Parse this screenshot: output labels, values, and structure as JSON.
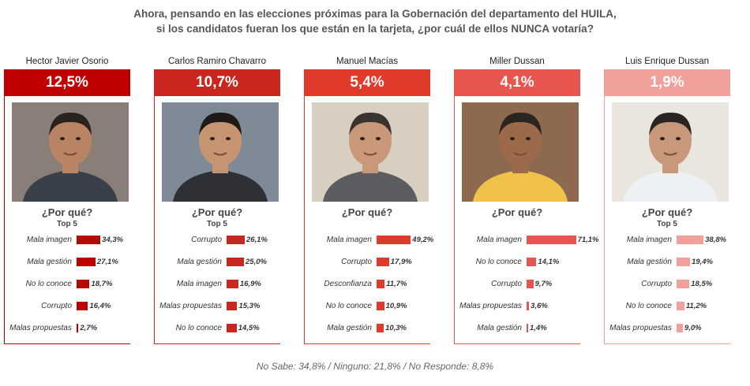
{
  "title_line1": "Ahora, pensando en las elecciones próximas para la Gobernación del departamento del HUILA,",
  "title_line2": "si los candidatos fueran los que están en la tarjeta, ¿por cuál de ellos NUNCA votaría?",
  "footer": "No Sabe: 34,8% / Ninguno: 21,8% / No Responde: 8,8%",
  "porque_label": "¿Por qué?",
  "top5_label": "Top 5",
  "chart_data": {
    "type": "bar",
    "title": "Ahora, pensando en las elecciones próximas para la Gobernación del departamento del HUILA, si los candidatos fueran los que están en la tarjeta, ¿por cuál de ellos NUNCA votaría?",
    "unit": "%",
    "candidates": [
      {
        "name": "Hector Javier Osorio",
        "total": "12,5%",
        "total_value": 12.5,
        "color": "#c00000",
        "show_top5": true,
        "reasons": [
          {
            "label": "Mala imagen",
            "value": 34.3,
            "text": "34,3%"
          },
          {
            "label": "Mala gestión",
            "value": 27.1,
            "text": "27,1%"
          },
          {
            "label": "No lo conoce",
            "value": 18.7,
            "text": "18,7%"
          },
          {
            "label": "Corrupto",
            "value": 16.4,
            "text": "16,4%"
          },
          {
            "label": "Malas propuestas",
            "value": 2.7,
            "text": "2,7%"
          }
        ]
      },
      {
        "name": "Carlos Ramiro Chavarro",
        "total": "10,7%",
        "total_value": 10.7,
        "color": "#c8261f",
        "show_top5": true,
        "reasons": [
          {
            "label": "Corrupto",
            "value": 26.1,
            "text": "26,1%"
          },
          {
            "label": "Mala gestión",
            "value": 25.0,
            "text": "25,0%"
          },
          {
            "label": "Mala imagen",
            "value": 16.9,
            "text": "16,9%"
          },
          {
            "label": "Malas propuestas",
            "value": 15.3,
            "text": "15,3%"
          },
          {
            "label": "No lo conoce",
            "value": 14.5,
            "text": "14,5%"
          }
        ]
      },
      {
        "name": "Manuel Macías",
        "total": "5,4%",
        "total_value": 5.4,
        "color": "#e03a2a",
        "show_top5": false,
        "reasons": [
          {
            "label": "Mala imagen",
            "value": 49.2,
            "text": "49,2%"
          },
          {
            "label": "Corrupto",
            "value": 17.9,
            "text": "17,9%"
          },
          {
            "label": "Desconfianza",
            "value": 11.7,
            "text": "11,7%"
          },
          {
            "label": "No lo conoce",
            "value": 10.9,
            "text": "10,9%"
          },
          {
            "label": "Mala gestión",
            "value": 10.3,
            "text": "10,3%"
          }
        ]
      },
      {
        "name": "Miller Dussan",
        "total": "4,1%",
        "total_value": 4.1,
        "color": "#e85550",
        "show_top5": false,
        "reasons": [
          {
            "label": "Mala imagen",
            "value": 71.1,
            "text": "71,1%"
          },
          {
            "label": "No lo conoce",
            "value": 14.1,
            "text": "14,1%"
          },
          {
            "label": "Corrupto",
            "value": 9.7,
            "text": "9,7%"
          },
          {
            "label": "Malas propuestas",
            "value": 3.6,
            "text": "3,6%"
          },
          {
            "label": "Mala gestión",
            "value": 1.4,
            "text": "1,4%"
          }
        ]
      },
      {
        "name": "Luis Enrique Dussan",
        "total": "1,9%",
        "total_value": 1.9,
        "color": "#f2a09b",
        "show_top5": true,
        "reasons": [
          {
            "label": "Mala imagen",
            "value": 38.8,
            "text": "38,8%"
          },
          {
            "label": "Mala gestión",
            "value": 19.4,
            "text": "19,4%"
          },
          {
            "label": "Corrupto",
            "value": 18.5,
            "text": "18,5%"
          },
          {
            "label": "No lo conoce",
            "value": 11.2,
            "text": "11,2%"
          },
          {
            "label": "Malas propuestas",
            "value": 9.0,
            "text": "9,0%"
          }
        ]
      }
    ]
  }
}
